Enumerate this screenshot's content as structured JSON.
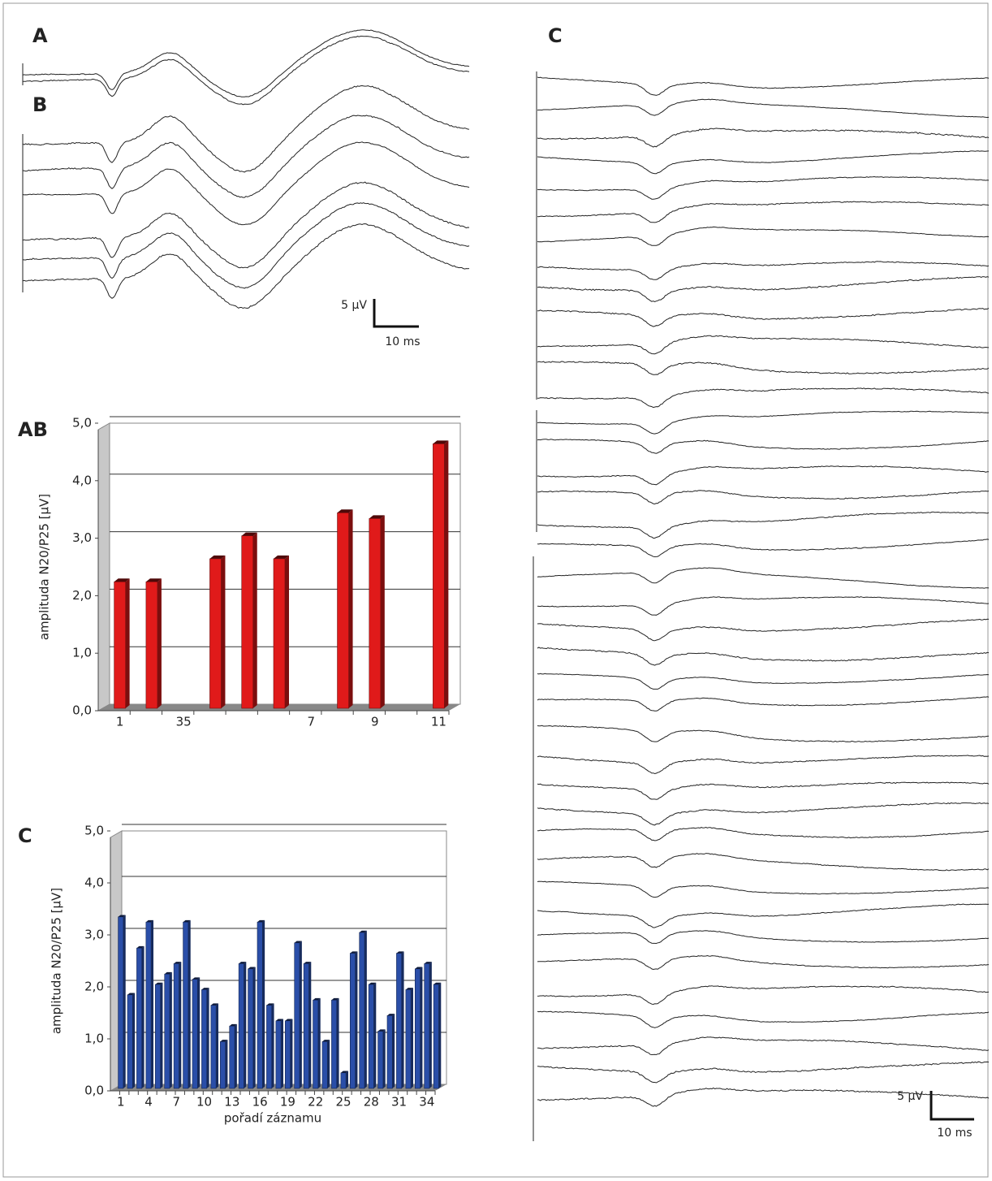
{
  "panels": {
    "a": "A",
    "b": "B",
    "c": "C"
  },
  "scale_bars": [
    {
      "amplitude": "5 µV",
      "time": "10 ms"
    },
    {
      "amplitude": "5 µV",
      "time": "10 ms"
    }
  ],
  "chart_data": [
    {
      "type": "bar",
      "title": "AB",
      "y_label": "amplituda N20/P25 [µV]",
      "color": "#e01a1a",
      "categories": [
        "1",
        null,
        "35",
        null,
        null,
        null,
        "7",
        null,
        "9",
        null,
        "11"
      ],
      "values": [
        2.2,
        2.2,
        null,
        2.6,
        3.0,
        2.6,
        null,
        3.4,
        3.3,
        null,
        4.6
      ],
      "ylim": [
        0,
        5
      ],
      "yticks": [
        {
          "value": 0,
          "label": "0,0"
        },
        {
          "value": 1,
          "label": "1,0"
        },
        {
          "value": 2,
          "label": "2,0"
        },
        {
          "value": 3,
          "label": "3,0"
        },
        {
          "value": 4,
          "label": "4,0"
        },
        {
          "value": 5,
          "label": "5,0"
        }
      ],
      "grid": true
    },
    {
      "type": "bar",
      "title": "C",
      "y_label": "amplituda N20/P25 [µV]",
      "x_label": "pořadí záznamu",
      "color": "#2a4ea8",
      "categories": [
        "1",
        null,
        null,
        "4",
        null,
        null,
        "7",
        null,
        null,
        "10",
        null,
        null,
        "13",
        null,
        null,
        "16",
        null,
        null,
        "19",
        null,
        null,
        "22",
        null,
        null,
        "25",
        null,
        null,
        "28",
        null,
        null,
        "31",
        null,
        null,
        "34",
        null
      ],
      "values": [
        3.3,
        1.8,
        2.7,
        3.2,
        2.0,
        2.2,
        2.4,
        3.2,
        2.1,
        1.9,
        1.6,
        0.9,
        1.2,
        2.4,
        2.3,
        3.2,
        1.6,
        1.3,
        1.3,
        2.8,
        2.4,
        1.7,
        0.9,
        1.7,
        0.3,
        2.6,
        3.0,
        2.0,
        1.1,
        1.4,
        2.6,
        1.9,
        2.3,
        2.4,
        2.0
      ],
      "ylim": [
        0,
        5
      ],
      "yticks": [
        {
          "value": 0,
          "label": "0,0"
        },
        {
          "value": 1,
          "label": "1,0"
        },
        {
          "value": 2,
          "label": "2,0"
        },
        {
          "value": 3,
          "label": "3,0"
        },
        {
          "value": 4,
          "label": "4,0"
        },
        {
          "value": 5,
          "label": "5,0"
        }
      ],
      "grid": true
    }
  ]
}
